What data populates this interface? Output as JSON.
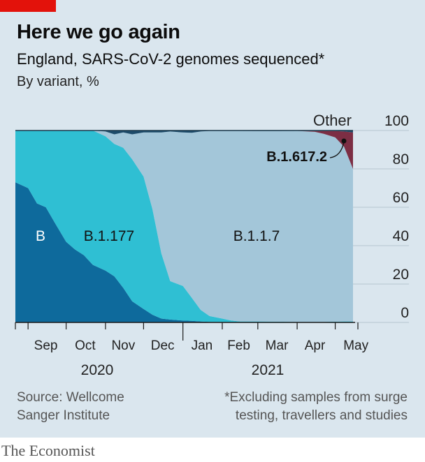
{
  "header": {
    "title": "Here we go again",
    "subtitle": "England, SARS-CoV-2 genomes sequenced*",
    "unit": "By variant, %"
  },
  "footer": {
    "source": [
      "Source: Wellcome",
      "Sanger Institute"
    ],
    "note": [
      "*Excluding samples from surge",
      "testing, travellers and studies"
    ],
    "brand": "The Economist"
  },
  "colors": {
    "background": "#dae6ee",
    "brand_red": "#e3120b",
    "B": "#0e6a9c",
    "B.1.177": "#2fbfd3",
    "B.1.1.7": "#a3c6d9",
    "B.1.617.2": "#7c2e44",
    "Other": "#1d4b6a"
  },
  "chart_data": {
    "type": "area",
    "stacked": true,
    "x_unit": "month",
    "x": [
      "2020-08-22",
      "2020-09-01",
      "2020-09-08",
      "2020-09-15",
      "2020-09-22",
      "2020-10-01",
      "2020-10-08",
      "2020-10-15",
      "2020-10-22",
      "2020-11-01",
      "2020-11-08",
      "2020-11-15",
      "2020-11-22",
      "2020-12-01",
      "2020-12-08",
      "2020-12-15",
      "2020-12-22",
      "2021-01-01",
      "2021-01-08",
      "2021-01-15",
      "2021-01-22",
      "2021-02-01",
      "2021-02-08",
      "2021-02-15",
      "2021-03-01",
      "2021-03-15",
      "2021-04-01",
      "2021-04-15",
      "2021-04-22",
      "2021-05-01",
      "2021-05-08",
      "2021-05-15"
    ],
    "series": [
      {
        "name": "B",
        "values": [
          73,
          70,
          62,
          60,
          52,
          42,
          38,
          35,
          30,
          27,
          24,
          18,
          11,
          7,
          4,
          2,
          1.5,
          1,
          0.8,
          0.5,
          0.3,
          0.2,
          0.1,
          0.1,
          0,
          0,
          0,
          0,
          0,
          0,
          0,
          0
        ]
      },
      {
        "name": "B.1.177",
        "values": [
          27,
          30,
          38,
          40,
          48,
          58,
          62,
          65,
          70,
          70,
          69,
          73,
          74,
          69,
          55,
          34,
          20,
          18,
          12,
          6,
          3,
          1.8,
          0.9,
          0.4,
          0.5,
          0.4,
          0.3,
          0.3,
          0.3,
          0.4,
          0.5,
          0.5
        ]
      },
      {
        "name": "B.1.1.7",
        "values": [
          0,
          0,
          0,
          0,
          0,
          0,
          0,
          0,
          0,
          2.5,
          5,
          8,
          13,
          23,
          40,
          63,
          78,
          80,
          86,
          93,
          96.5,
          97.8,
          98.8,
          99.3,
          99.2,
          99.3,
          99.5,
          99,
          98,
          96,
          91,
          79.5
        ]
      },
      {
        "name": "B.1.617.2",
        "values": [
          0,
          0,
          0,
          0,
          0,
          0,
          0,
          0,
          0,
          0,
          0,
          0,
          0,
          0,
          0,
          0,
          0,
          0,
          0,
          0,
          0,
          0,
          0,
          0,
          0,
          0,
          0,
          0.5,
          1.5,
          3.3,
          8,
          19
        ]
      },
      {
        "name": "Other",
        "values": [
          0,
          0,
          0,
          0,
          0,
          0,
          0,
          0,
          0,
          0.5,
          2,
          1,
          2,
          1,
          1,
          1,
          0.5,
          1,
          1.2,
          0.5,
          0.2,
          0.2,
          0.2,
          0.2,
          0.3,
          0.3,
          0.2,
          0.2,
          0.2,
          0.3,
          0.5,
          1
        ]
      }
    ],
    "labels": [
      "B",
      "B.1.177",
      "B.1.1.7",
      "B.1.617.2",
      "Other"
    ],
    "xticks": [
      "Sep",
      "Oct",
      "Nov",
      "Dec",
      "Jan",
      "Feb",
      "Mar",
      "Apr",
      "May"
    ],
    "years": [
      "2020",
      "2021"
    ],
    "yticks": [
      0,
      20,
      40,
      60,
      80,
      100
    ],
    "ylim": [
      0,
      100
    ],
    "y_axis_side": "right",
    "grid": true
  }
}
